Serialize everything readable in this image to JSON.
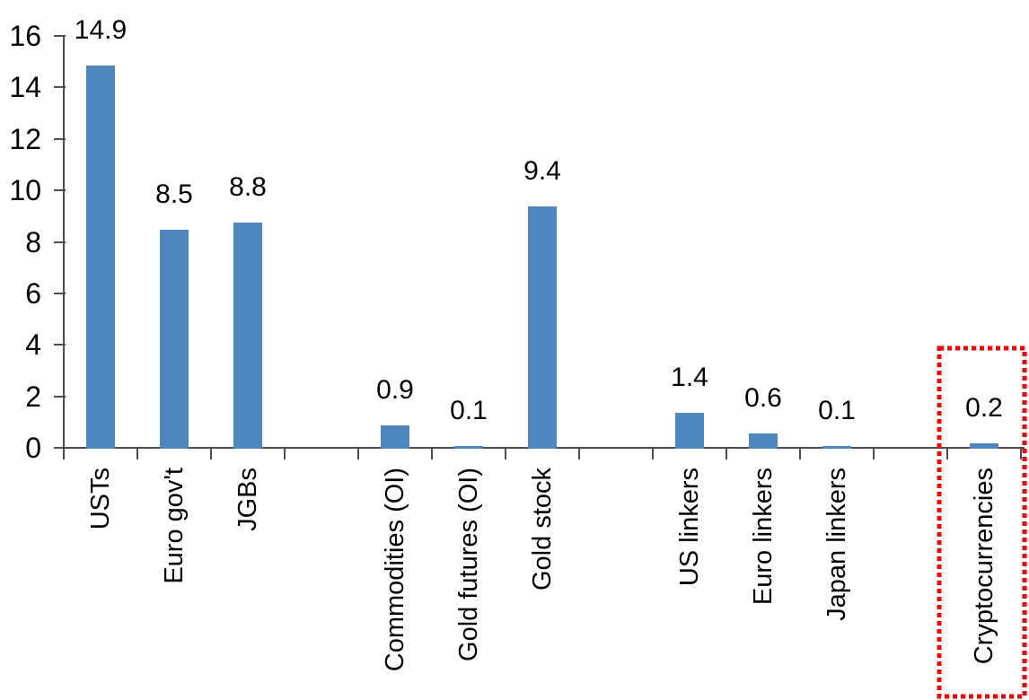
{
  "chart_data": {
    "type": "bar",
    "title": "",
    "xlabel": "",
    "ylabel": "",
    "categories": [
      "USTs",
      "Euro gov't",
      "JGBs",
      "",
      "Commodities (OI)",
      "Gold futures (OI)",
      "Gold stock",
      "",
      "US linkers",
      "Euro linkers",
      "Japan linkers",
      "",
      "Cryptocurrencies"
    ],
    "values": [
      14.9,
      8.5,
      8.8,
      null,
      0.9,
      0.1,
      9.4,
      null,
      1.4,
      0.6,
      0.1,
      null,
      0.2
    ],
    "data_labels": [
      "14.9",
      "8.5",
      "8.8",
      null,
      "0.9",
      "0.1",
      "9.4",
      null,
      "1.4",
      "0.6",
      "0.1",
      null,
      "0.2"
    ],
    "ylim": [
      0,
      16
    ],
    "yticks": [
      0,
      2,
      4,
      6,
      8,
      10,
      12,
      14,
      16
    ],
    "grid": false,
    "legend": "none",
    "bar_color": "#4E86BE",
    "axis_color": "#4D4D4D",
    "text_color": "#000000",
    "highlight": {
      "category": "Cryptocurrencies",
      "shape": "red-dotted-rectangle",
      "color": "#FF0000"
    }
  }
}
